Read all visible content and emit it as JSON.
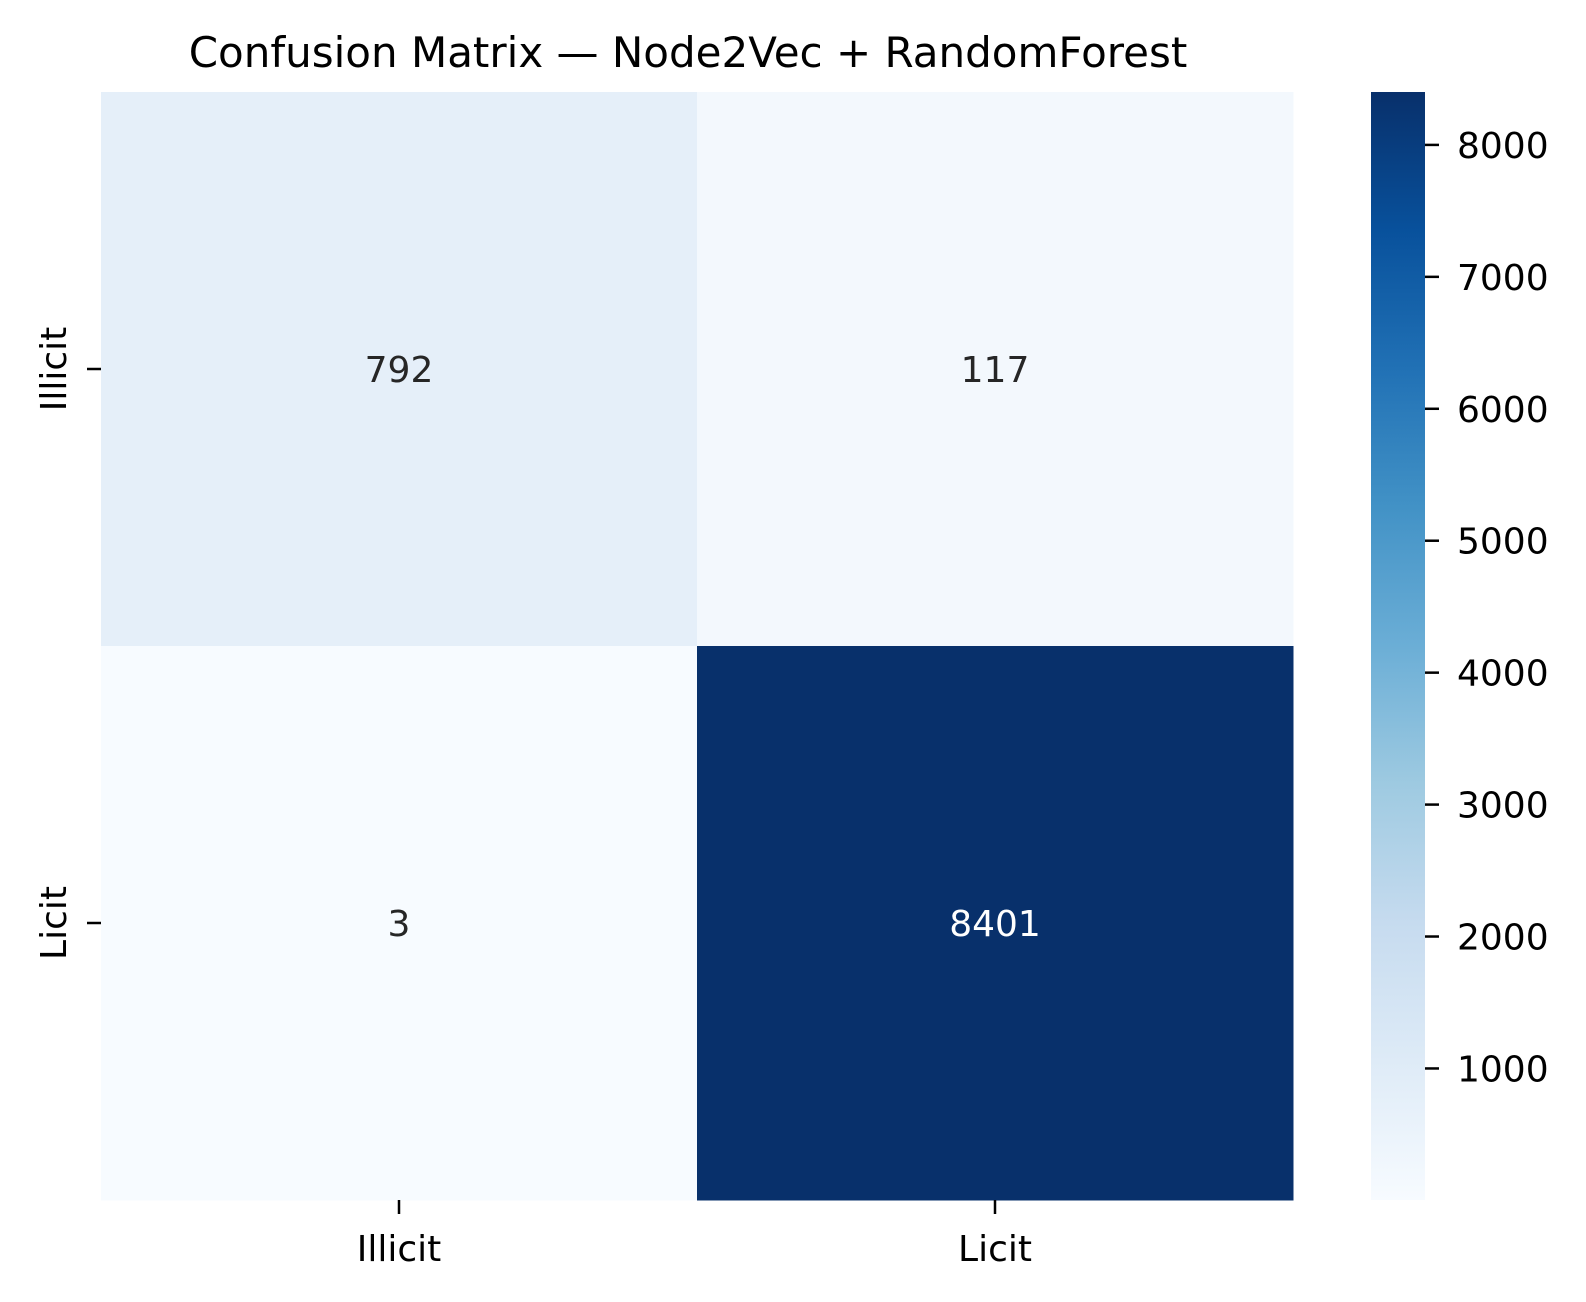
{
  "chart_data": {
    "type": "heatmap",
    "title": "Confusion Matrix — Node2Vec + RandomForest",
    "xlabel": "",
    "ylabel": "",
    "x_categories": [
      "Illicit",
      "Licit"
    ],
    "y_categories": [
      "Illicit",
      "Licit"
    ],
    "values": [
      [
        792,
        117
      ],
      [
        3,
        8401
      ]
    ],
    "colormap": "Blues",
    "colorbar": {
      "min": 3,
      "max": 8401,
      "ticks": [
        1000,
        2000,
        3000,
        4000,
        5000,
        6000,
        7000,
        8000
      ]
    },
    "annotations": true,
    "colors": {
      "cell_illicit_illicit": "#e5eff9",
      "cell_illicit_licit": "#f3f8fd",
      "cell_licit_illicit": "#f7fbff",
      "cell_licit_licit": "#08306b",
      "text_dark": "#262626",
      "text_light": "#ffffff"
    }
  }
}
